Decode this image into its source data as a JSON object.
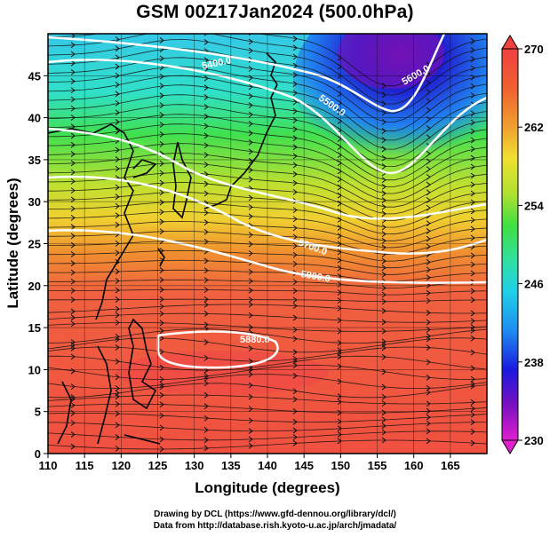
{
  "title": "GSM 00Z17Jan2024 (500.0hPa)",
  "map": {
    "x_axis": {
      "label": "Longitude (degrees)",
      "range": [
        110,
        170
      ],
      "ticks": [
        "110",
        "115",
        "120",
        "125",
        "130",
        "135",
        "140",
        "145",
        "150",
        "155",
        "160",
        "165"
      ]
    },
    "y_axis": {
      "label": "Latitude  (degrees)",
      "range": [
        0,
        50
      ],
      "ticks": [
        "0",
        "5",
        "10",
        "15",
        "20",
        "25",
        "30",
        "35",
        "40",
        "45"
      ]
    },
    "grid": true,
    "coastlines": true,
    "field": "temperature (shaded) with geopotential height contours and wind streamlines",
    "contour_labels": [
      "5400.0",
      "5500.0",
      "5700.0",
      "5800.0",
      "5880.0",
      "5600.0"
    ]
  },
  "colorbar": {
    "ticks": [
      "270",
      "262",
      "254",
      "246",
      "238",
      "230"
    ],
    "range": [
      230,
      270
    ],
    "placement": "right",
    "colors": [
      "#e020d0",
      "#7a10c0",
      "#1a1ae0",
      "#1e8cf0",
      "#20d0e8",
      "#30e0a0",
      "#40e040",
      "#b0e030",
      "#f0e030",
      "#f0a030",
      "#f06030",
      "#f04040"
    ]
  },
  "credit": {
    "line1": "Drawing by DCL (https://www.gfd-dennou.org/library/dcl/)",
    "line2": "Data from http://database.rish.kyoto-u.ac.jp/arch/jmadata/"
  }
}
